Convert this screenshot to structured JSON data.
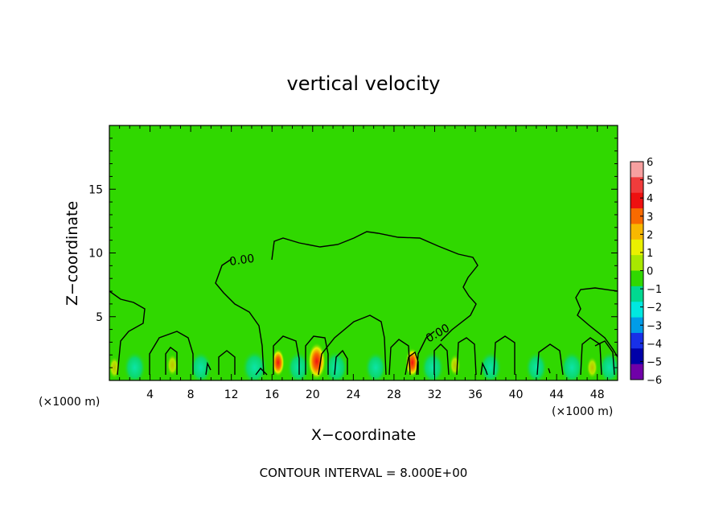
{
  "chart_data": {
    "type": "heatmap",
    "title": "vertical velocity",
    "xlabel": "X−coordinate",
    "ylabel": "Z−coordinate",
    "x_unit": "(×1000 m)",
    "y_unit": "(×1000 m)",
    "xlim": [
      0,
      50
    ],
    "ylim": [
      0,
      20
    ],
    "x_ticks": [
      4,
      8,
      12,
      16,
      20,
      24,
      28,
      32,
      36,
      40,
      44,
      48
    ],
    "y_ticks": [
      5,
      10,
      15
    ],
    "footer": "CONTOUR INTERVAL = 8.000E+00",
    "contour_label": "0.00",
    "colorbar": {
      "levels": [
        6,
        5,
        4,
        3,
        2,
        1,
        0,
        -1,
        -2,
        -3,
        -4,
        -5,
        -6
      ],
      "colors": [
        "#f7a0a0",
        "#f03c3c",
        "#ee1010",
        "#f86a00",
        "#f8b800",
        "#eaf000",
        "#a8e800",
        "#30d800",
        "#00d890",
        "#00e8e0",
        "#009ce8",
        "#1830e8",
        "#0000a8",
        "#7000a8"
      ]
    },
    "background_level": 0,
    "updrafts": [
      {
        "x": 16.6,
        "z": 1.4,
        "w": 2.5
      },
      {
        "x": 20.4,
        "z": 1.5,
        "w": 4.5
      },
      {
        "x": 29.8,
        "z": 1.4,
        "w": 2.8
      },
      {
        "x": 0.5,
        "z": 1.0,
        "w": 1.5
      },
      {
        "x": 6.2,
        "z": 1.2,
        "w": 1.0
      },
      {
        "x": 34.0,
        "z": 1.2,
        "w": 1.0
      },
      {
        "x": 47.5,
        "z": 1.0,
        "w": 1.0
      }
    ],
    "downdrafts": [
      {
        "x": 2.5,
        "z": 1.0,
        "w": -1.5
      },
      {
        "x": 9.0,
        "z": 1.0,
        "w": -1.5
      },
      {
        "x": 14.3,
        "z": 1.0,
        "w": -2.0
      },
      {
        "x": 18.6,
        "z": 1.0,
        "w": -1.6
      },
      {
        "x": 22.3,
        "z": 1.0,
        "w": -1.8
      },
      {
        "x": 26.2,
        "z": 1.0,
        "w": -1.4
      },
      {
        "x": 31.8,
        "z": 1.0,
        "w": -1.6
      },
      {
        "x": 37.5,
        "z": 1.0,
        "w": -1.5
      },
      {
        "x": 42.0,
        "z": 1.0,
        "w": -1.4
      },
      {
        "x": 45.5,
        "z": 1.0,
        "w": -1.6
      },
      {
        "x": 49.2,
        "z": 1.0,
        "w": -1.4
      }
    ]
  }
}
